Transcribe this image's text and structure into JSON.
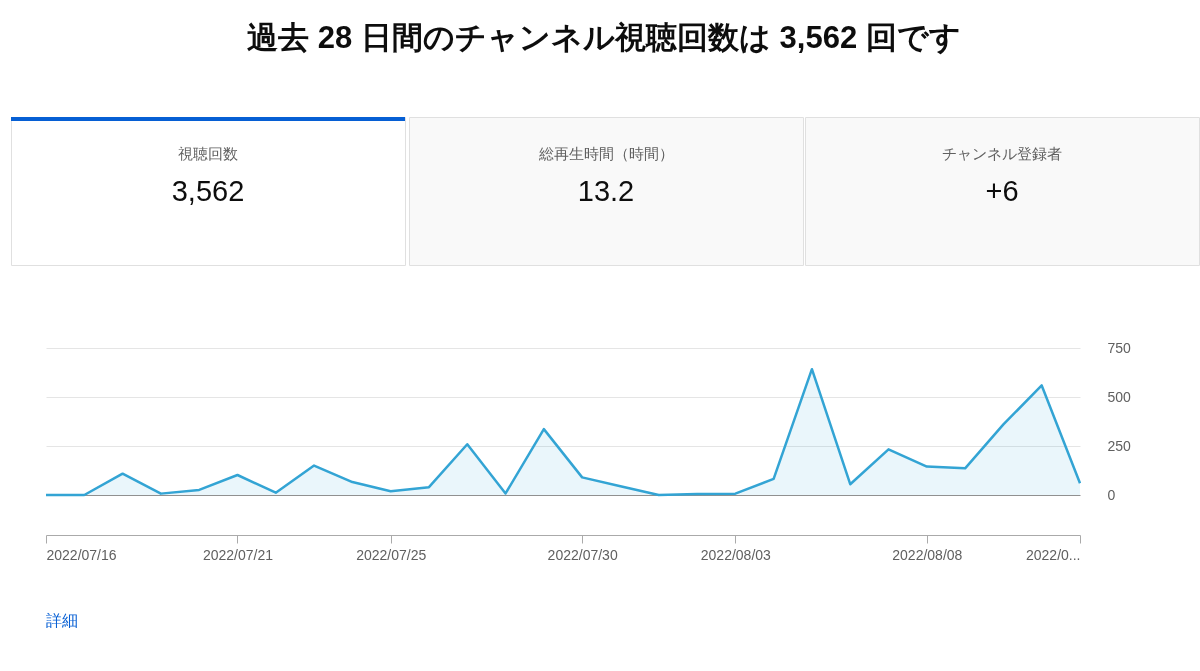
{
  "chart_data": [
    {
      "type": "other",
      "title": "過去 28 日間のチャンネル視聴回数は 3,562 回です",
      "annotations": [
        "視聴回数",
        "3,562",
        "総再生時間（時間）",
        "13.2",
        "チャンネル登録者",
        "+6"
      ]
    },
    {
      "type": "area",
      "x": [
        "2022-07-16",
        "2022-07-17",
        "2022-07-18",
        "2022-07-19",
        "2022-07-20",
        "2022-07-21",
        "2022-07-22",
        "2022-07-23",
        "2022-07-24",
        "2022-07-25",
        "2022-07-26",
        "2022-07-27",
        "2022-07-28",
        "2022-07-29",
        "2022-07-30",
        "2022-07-31",
        "2022-08-01",
        "2022-08-02",
        "2022-08-03",
        "2022-08-04",
        "2022-08-05",
        "2022-08-06",
        "2022-08-07",
        "2022-08-08",
        "2022-08-09",
        "2022-08-10",
        "2022-08-11",
        "2022-08-12"
      ],
      "series": [
        {
          "color": "#33a4d4",
          "values": [
            0,
            0,
            109,
            7,
            26,
            102,
            12,
            150,
            66,
            19,
            40,
            259,
            8,
            336,
            90,
            45,
            0,
            5,
            7,
            82,
            642,
            55,
            233,
            145,
            136,
            360,
            559,
            60
          ]
        }
      ],
      "xlim": [
        "2022-07-16",
        "2022-08-12"
      ],
      "xticks": [
        {
          "value": "2022-07-16",
          "label": "2022/07/16"
        },
        {
          "value": "2022-07-21",
          "label": "2022/07/21"
        },
        {
          "value": "2022-07-25",
          "label": "2022/07/25"
        },
        {
          "value": "2022-07-30",
          "label": "2022/07/30"
        },
        {
          "value": "2022-08-03",
          "label": "2022/08/03"
        },
        {
          "value": "2022-08-08",
          "label": "2022/08/08"
        },
        {
          "value": "2022-08-12",
          "label": "2022/0..."
        }
      ],
      "ylim": [
        0,
        750
      ],
      "yticks": [
        0,
        250,
        500,
        750
      ],
      "grid": "y",
      "annotations": [
        "詳細"
      ]
    }
  ]
}
